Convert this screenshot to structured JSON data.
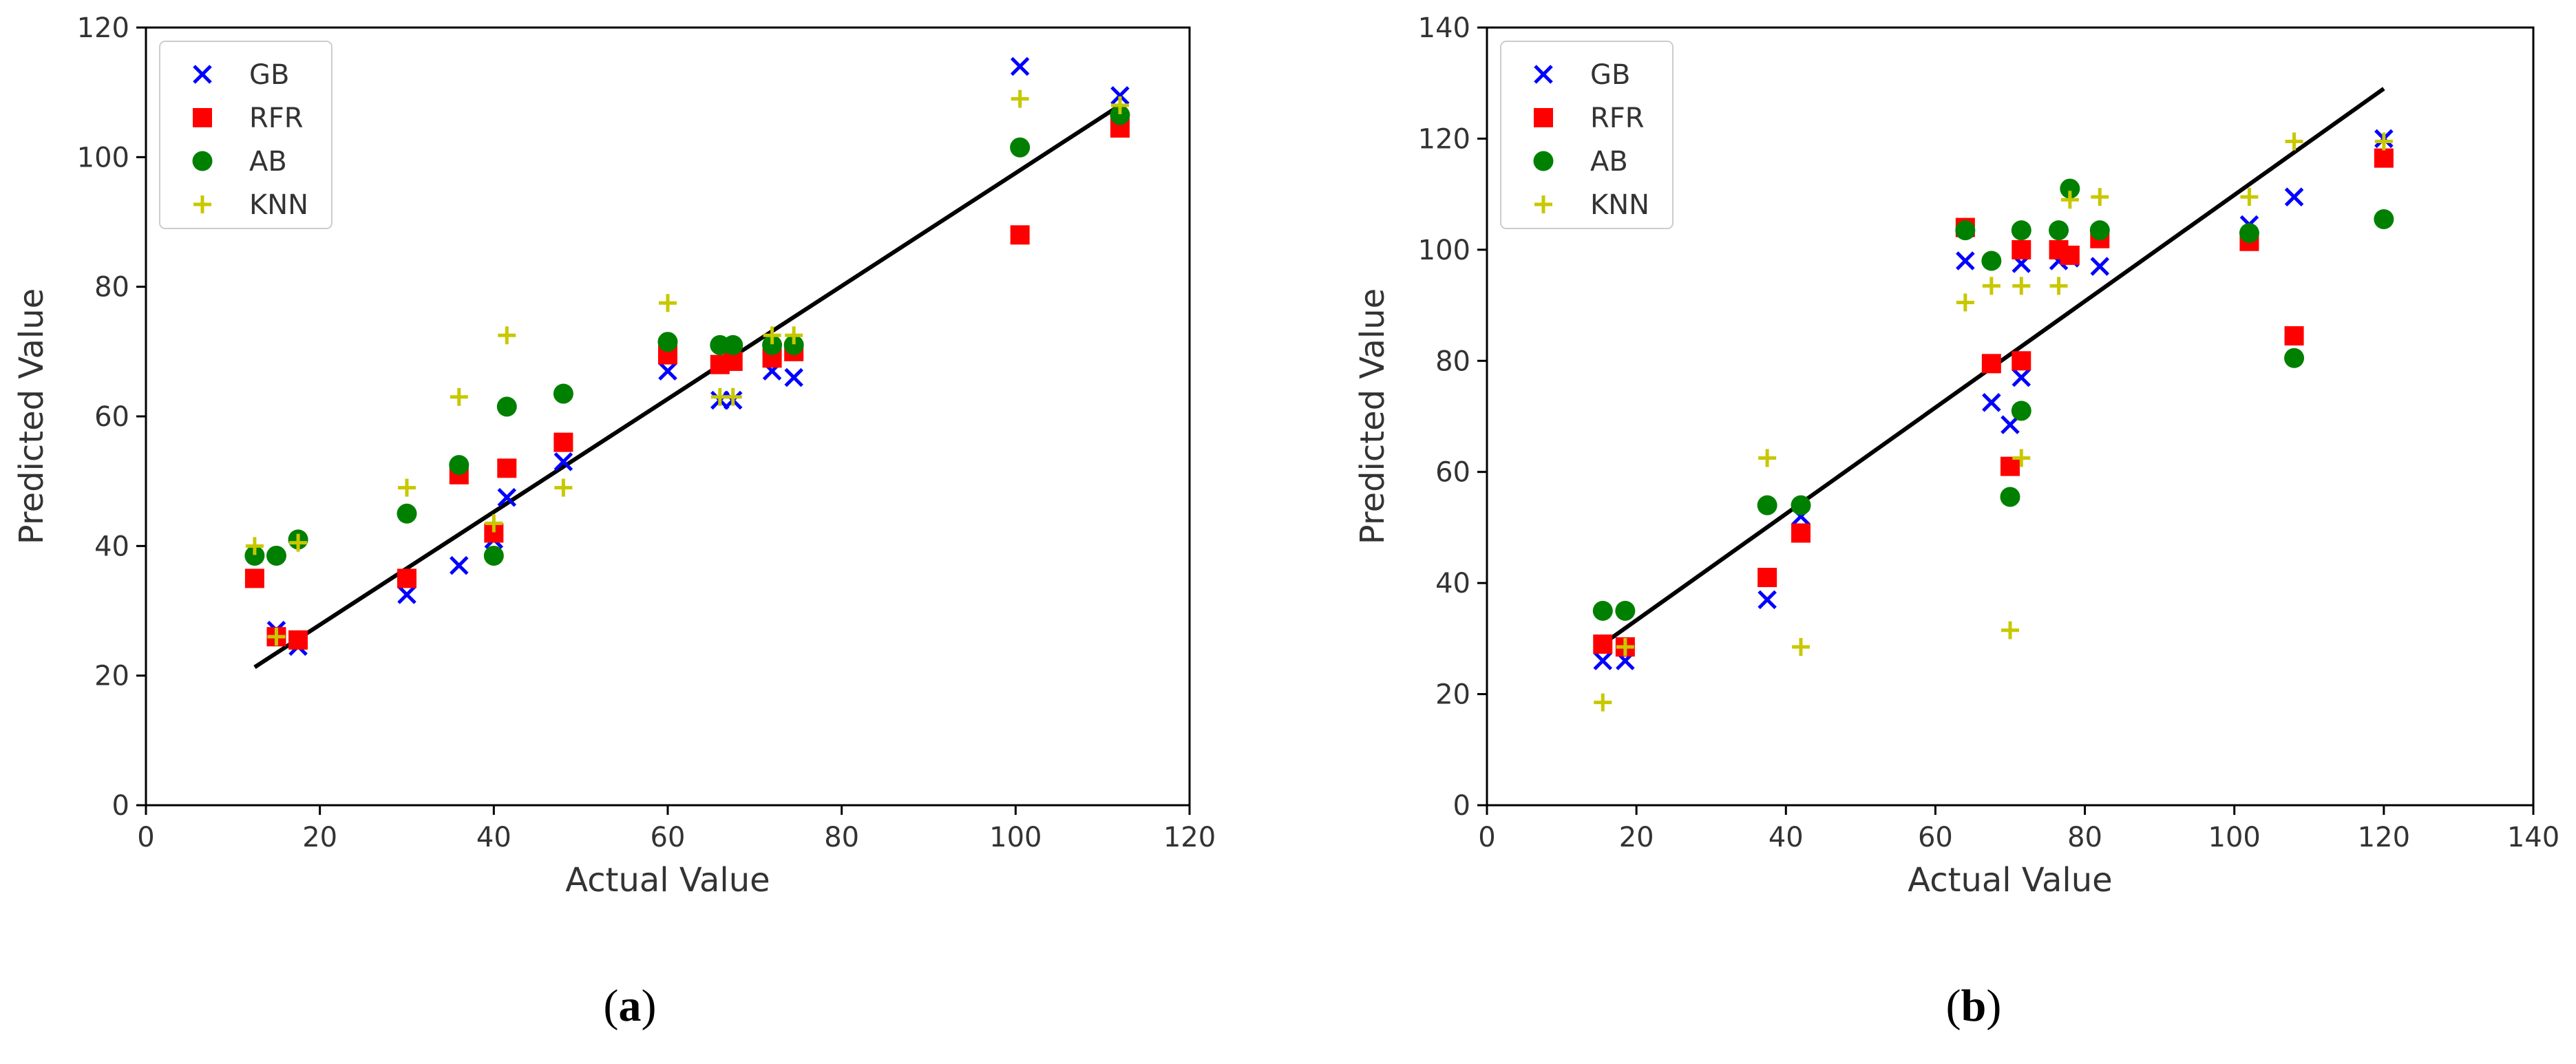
{
  "chart_data": [
    {
      "type": "scatter",
      "panel_label": "a",
      "xlabel": "Actual Value",
      "ylabel": "Predicted Value",
      "xlim": [
        0,
        120
      ],
      "ylim": [
        0,
        120
      ],
      "xticks": [
        0,
        20,
        40,
        60,
        80,
        100,
        120
      ],
      "yticks": [
        0,
        20,
        40,
        60,
        80,
        100,
        120
      ],
      "legend_position": "top-left",
      "trend_line": {
        "x": [
          12.5,
          112
        ],
        "y": [
          21.3,
          108
        ]
      },
      "series": [
        {
          "name": "GB",
          "marker": "x",
          "color": "#0000ff",
          "points": [
            [
              15,
              27
            ],
            [
              17.5,
              24.5
            ],
            [
              30,
              32.5
            ],
            [
              36,
              37
            ],
            [
              40,
              41
            ],
            [
              41.5,
              47.5
            ],
            [
              48,
              53
            ],
            [
              60,
              67
            ],
            [
              66,
              62.5
            ],
            [
              67.5,
              62.5
            ],
            [
              72,
              67
            ],
            [
              74.5,
              66
            ],
            [
              100.5,
              114
            ],
            [
              112,
              109.5
            ]
          ]
        },
        {
          "name": "RFR",
          "marker": "square",
          "color": "#ff0000",
          "points": [
            [
              12.5,
              35
            ],
            [
              15,
              26
            ],
            [
              17.5,
              25.5
            ],
            [
              30,
              35
            ],
            [
              36,
              51
            ],
            [
              40,
              42
            ],
            [
              41.5,
              52
            ],
            [
              48,
              56
            ],
            [
              60,
              69.5
            ],
            [
              66,
              68
            ],
            [
              67.5,
              68.5
            ],
            [
              72,
              69
            ],
            [
              74.5,
              70
            ],
            [
              100.5,
              88
            ],
            [
              112,
              104.5
            ]
          ]
        },
        {
          "name": "AB",
          "marker": "circle",
          "color": "#008000",
          "points": [
            [
              12.5,
              38.5
            ],
            [
              15,
              38.5
            ],
            [
              17.5,
              41
            ],
            [
              30,
              45
            ],
            [
              36,
              52.5
            ],
            [
              40,
              38.5
            ],
            [
              41.5,
              61.5
            ],
            [
              48,
              63.5
            ],
            [
              60,
              71.5
            ],
            [
              66,
              71
            ],
            [
              67.5,
              71
            ],
            [
              72,
              71
            ],
            [
              74.5,
              71
            ],
            [
              100.5,
              101.5
            ],
            [
              112,
              106.5
            ]
          ]
        },
        {
          "name": "KNN",
          "marker": "plus",
          "color": "#c8c800",
          "points": [
            [
              12.5,
              40
            ],
            [
              15,
              26
            ],
            [
              17.5,
              40.5
            ],
            [
              30,
              49
            ],
            [
              36,
              63
            ],
            [
              40,
              43.5
            ],
            [
              41.5,
              72.5
            ],
            [
              48,
              49
            ],
            [
              60,
              77.5
            ],
            [
              66,
              63
            ],
            [
              67.5,
              63
            ],
            [
              72,
              72.5
            ],
            [
              74.5,
              72.5
            ],
            [
              100.5,
              109
            ],
            [
              112,
              108
            ]
          ]
        }
      ]
    },
    {
      "type": "scatter",
      "panel_label": "b",
      "xlabel": "Actual Value",
      "ylabel": "Predicted Value",
      "xlim": [
        0,
        140
      ],
      "ylim": [
        0,
        140
      ],
      "xticks": [
        0,
        20,
        40,
        60,
        80,
        100,
        120,
        140
      ],
      "yticks": [
        0,
        20,
        40,
        60,
        80,
        100,
        120,
        140
      ],
      "legend_position": "top-left",
      "trend_line": {
        "x": [
          15.5,
          120
        ],
        "y": [
          29,
          129
        ]
      },
      "series": [
        {
          "name": "GB",
          "marker": "x",
          "color": "#0000ff",
          "points": [
            [
              15.5,
              26
            ],
            [
              18.5,
              26
            ],
            [
              37.5,
              37
            ],
            [
              42,
              52
            ],
            [
              64,
              98
            ],
            [
              67.5,
              72.5
            ],
            [
              70,
              68.5
            ],
            [
              71.5,
              77
            ],
            [
              71.5,
              97.5
            ],
            [
              76.5,
              98
            ],
            [
              78,
              98.5
            ],
            [
              82,
              97
            ],
            [
              102,
              104.5
            ],
            [
              108,
              109.5
            ],
            [
              120,
              120
            ]
          ]
        },
        {
          "name": "RFR",
          "marker": "square",
          "color": "#ff0000",
          "points": [
            [
              15.5,
              29
            ],
            [
              18.5,
              28.5
            ],
            [
              37.5,
              41
            ],
            [
              42,
              49
            ],
            [
              64,
              104
            ],
            [
              67.5,
              79.5
            ],
            [
              70,
              61
            ],
            [
              71.5,
              80
            ],
            [
              71.5,
              100
            ],
            [
              76.5,
              100
            ],
            [
              78,
              99
            ],
            [
              82,
              102
            ],
            [
              102,
              101.5
            ],
            [
              108,
              84.5
            ],
            [
              120,
              116.5
            ]
          ]
        },
        {
          "name": "AB",
          "marker": "circle",
          "color": "#008000",
          "points": [
            [
              15.5,
              35
            ],
            [
              18.5,
              35
            ],
            [
              37.5,
              54
            ],
            [
              42,
              54
            ],
            [
              64,
              103.5
            ],
            [
              67.5,
              98
            ],
            [
              70,
              55.5
            ],
            [
              71.5,
              71
            ],
            [
              71.5,
              103.5
            ],
            [
              76.5,
              103.5
            ],
            [
              78,
              111
            ],
            [
              82,
              103.5
            ],
            [
              102,
              103
            ],
            [
              108,
              80.5
            ],
            [
              120,
              105.5
            ]
          ]
        },
        {
          "name": "KNN",
          "marker": "plus",
          "color": "#c8c800",
          "points": [
            [
              15.5,
              18.5
            ],
            [
              18.5,
              28.5
            ],
            [
              37.5,
              62.5
            ],
            [
              42,
              28.5
            ],
            [
              64,
              90.5
            ],
            [
              67.5,
              93.5
            ],
            [
              70,
              31.5
            ],
            [
              71.5,
              62.5
            ],
            [
              71.5,
              93.5
            ],
            [
              76.5,
              93.5
            ],
            [
              78,
              109
            ],
            [
              82,
              109.5
            ],
            [
              102,
              109.5
            ],
            [
              108,
              119.5
            ],
            [
              120,
              119.5
            ]
          ]
        }
      ]
    }
  ]
}
